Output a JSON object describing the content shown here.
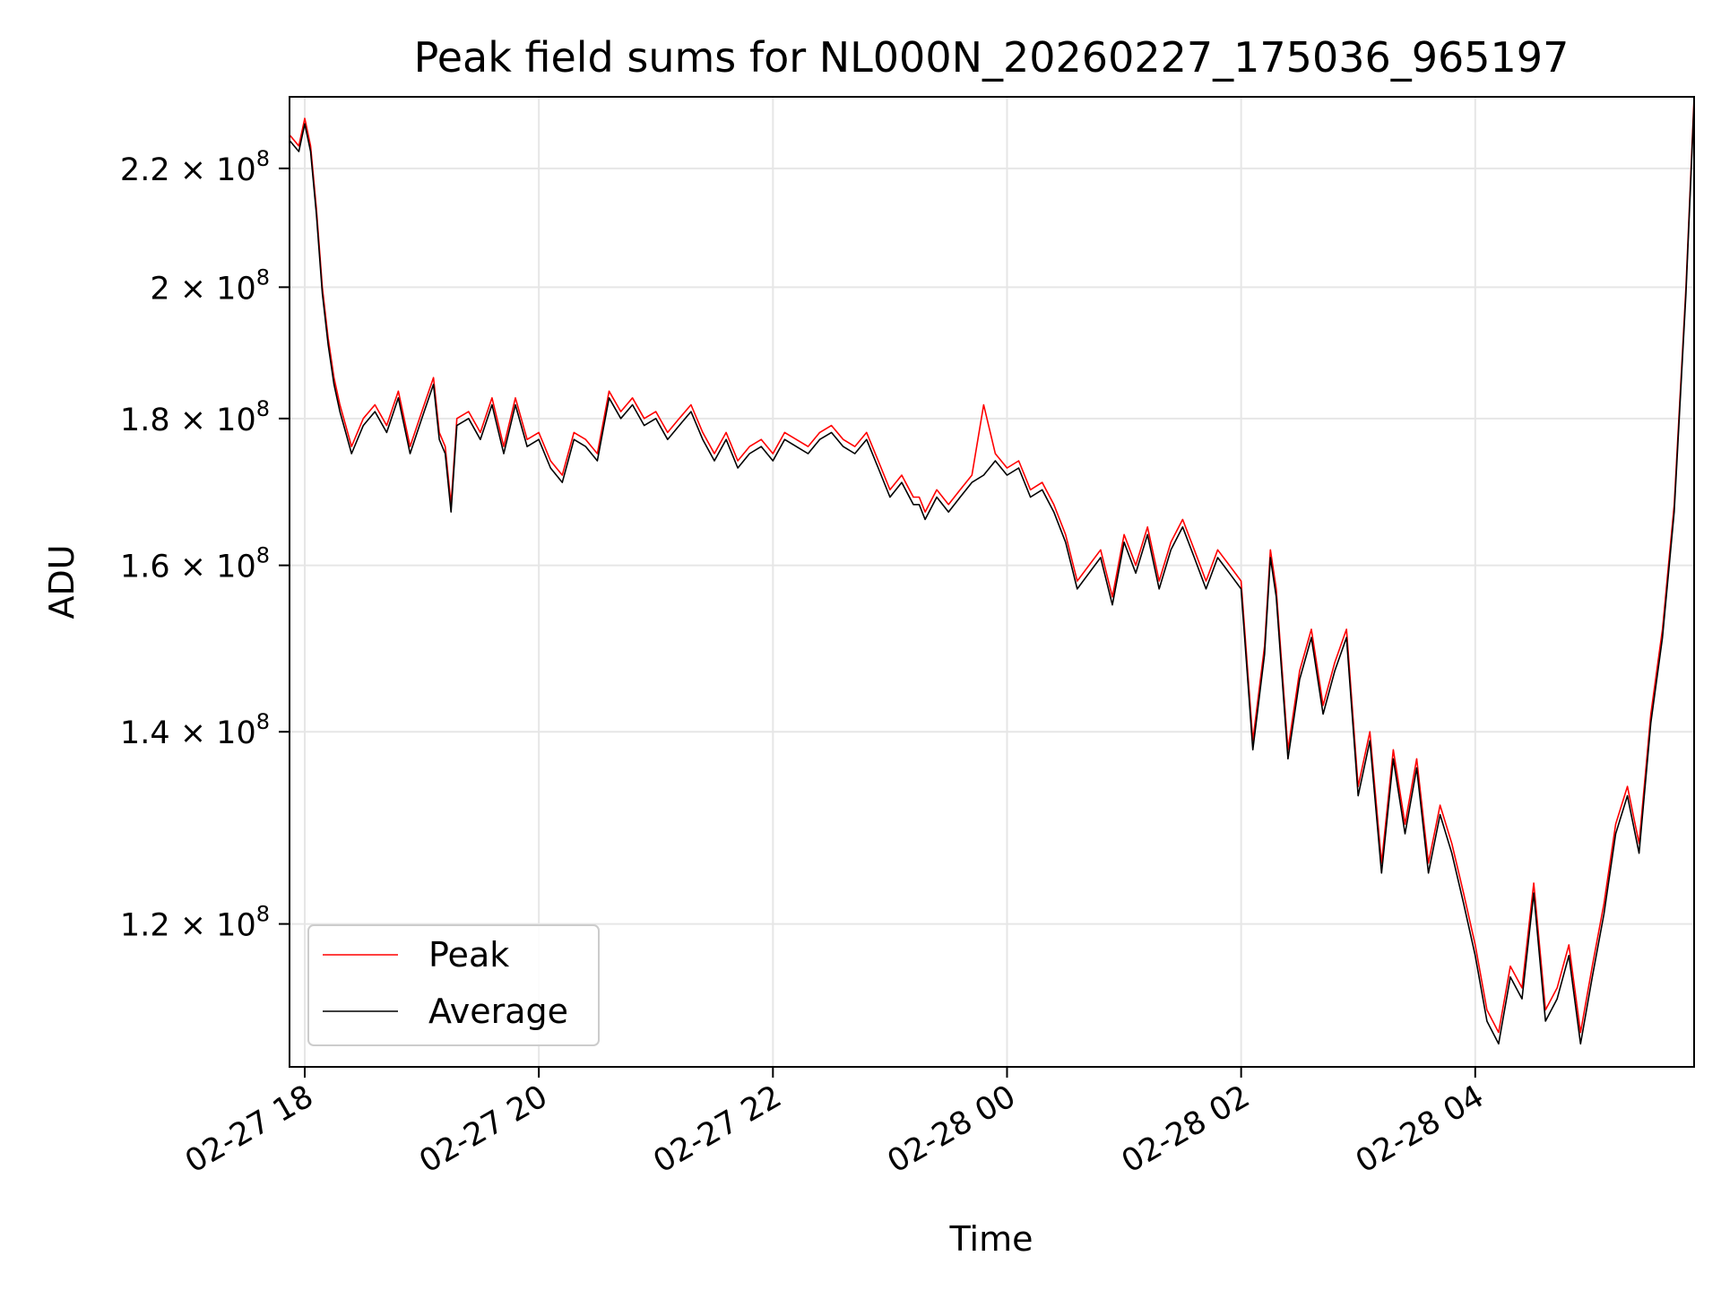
{
  "chart_data": {
    "type": "line",
    "title": "Peak field sums for NL000N_20260227_175036_965197",
    "xlabel": "Time",
    "ylabel": "ADU",
    "grid": true,
    "legend_position": "lower-left",
    "y_scale": "log",
    "x_range_hours": [
      17.87,
      5.87
    ],
    "x_ticks": [
      {
        "label": "02-27 18",
        "hour": 18
      },
      {
        "label": "02-27 20",
        "hour": 20
      },
      {
        "label": "02-27 22",
        "hour": 22
      },
      {
        "label": "02-28 00",
        "hour": 24
      },
      {
        "label": "02-28 02",
        "hour": 26
      },
      {
        "label": "02-28 04",
        "hour": 28
      }
    ],
    "y_ticks": [
      {
        "mantissa": "2.2",
        "value": 220000000
      },
      {
        "mantissa": "2",
        "value": 200000000
      },
      {
        "mantissa": "1.8",
        "value": 180000000
      },
      {
        "mantissa": "1.6",
        "value": 160000000
      },
      {
        "mantissa": "1.4",
        "value": 140000000
      },
      {
        "mantissa": "1.2",
        "value": 120000000
      }
    ],
    "y_tick_base": "× 10",
    "y_tick_exponent": "8",
    "ylim": [
      107000000,
      233000000
    ],
    "x_hours": [
      17.87,
      17.95,
      18.0,
      18.05,
      18.1,
      18.15,
      18.2,
      18.25,
      18.3,
      18.35,
      18.4,
      18.5,
      18.6,
      18.7,
      18.8,
      18.9,
      19.0,
      19.1,
      19.15,
      19.2,
      19.25,
      19.3,
      19.4,
      19.5,
      19.6,
      19.7,
      19.8,
      19.9,
      20.0,
      20.1,
      20.2,
      20.3,
      20.4,
      20.5,
      20.6,
      20.7,
      20.8,
      20.9,
      21.0,
      21.1,
      21.2,
      21.3,
      21.4,
      21.5,
      21.6,
      21.7,
      21.8,
      21.9,
      22.0,
      22.1,
      22.2,
      22.3,
      22.4,
      22.5,
      22.6,
      22.7,
      22.8,
      22.9,
      23.0,
      23.1,
      23.2,
      23.25,
      23.3,
      23.4,
      23.5,
      23.6,
      23.7,
      23.8,
      23.9,
      24.0,
      24.1,
      24.2,
      24.3,
      24.4,
      24.5,
      24.6,
      24.7,
      24.8,
      24.9,
      25.0,
      25.1,
      25.2,
      25.3,
      25.4,
      25.5,
      25.6,
      25.7,
      25.8,
      25.9,
      26.0,
      26.1,
      26.2,
      26.25,
      26.3,
      26.4,
      26.5,
      26.6,
      26.7,
      26.8,
      26.9,
      27.0,
      27.1,
      27.2,
      27.3,
      27.4,
      27.5,
      27.6,
      27.7,
      27.8,
      27.9,
      28.0,
      28.1,
      28.2,
      28.3,
      28.4,
      28.5,
      28.6,
      28.7,
      28.8,
      28.9,
      29.0,
      29.1,
      29.2,
      29.3,
      29.4,
      29.5,
      29.6,
      29.7,
      29.8,
      29.87
    ],
    "series": [
      {
        "name": "Peak",
        "color": "#ff0000",
        "values": [
          226000000,
          224000000,
          229000000,
          224000000,
          213000000,
          200000000,
          192000000,
          186000000,
          182000000,
          179000000,
          176000000,
          180000000,
          182000000,
          179000000,
          184000000,
          176000000,
          181000000,
          186000000,
          178000000,
          176000000,
          168000000,
          180000000,
          181000000,
          178000000,
          183000000,
          176000000,
          183000000,
          177000000,
          178000000,
          174000000,
          172000000,
          178000000,
          177000000,
          175000000,
          184000000,
          181000000,
          183000000,
          180000000,
          181000000,
          178000000,
          180000000,
          182000000,
          178000000,
          175000000,
          178000000,
          174000000,
          176000000,
          177000000,
          175000000,
          178000000,
          177000000,
          176000000,
          178000000,
          179000000,
          177000000,
          176000000,
          178000000,
          174000000,
          170000000,
          172000000,
          169000000,
          169000000,
          167000000,
          170000000,
          168000000,
          170000000,
          172000000,
          182000000,
          175000000,
          173000000,
          174000000,
          170000000,
          171000000,
          168000000,
          164000000,
          158000000,
          160000000,
          162000000,
          156000000,
          164000000,
          160000000,
          165000000,
          158000000,
          163000000,
          166000000,
          162000000,
          158000000,
          162000000,
          160000000,
          158000000,
          139000000,
          150000000,
          162000000,
          157000000,
          138000000,
          147000000,
          152000000,
          143000000,
          148000000,
          152000000,
          134000000,
          140000000,
          126000000,
          138000000,
          130000000,
          137000000,
          126000000,
          132000000,
          128000000,
          123000000,
          118000000,
          112000000,
          110000000,
          116000000,
          114000000,
          124000000,
          112000000,
          114000000,
          118000000,
          110000000,
          116000000,
          122000000,
          130000000,
          134000000,
          128000000,
          142000000,
          152000000,
          168000000,
          200000000,
          233000000
        ]
      },
      {
        "name": "Average",
        "color": "#000000",
        "values": [
          225000000,
          223000000,
          228000000,
          223000000,
          212000000,
          199000000,
          191000000,
          185000000,
          181000000,
          178000000,
          175000000,
          179000000,
          181000000,
          178000000,
          183000000,
          175000000,
          180000000,
          185000000,
          177000000,
          175000000,
          167000000,
          179000000,
          180000000,
          177000000,
          182000000,
          175000000,
          182000000,
          176000000,
          177000000,
          173000000,
          171000000,
          177000000,
          176000000,
          174000000,
          183000000,
          180000000,
          182000000,
          179000000,
          180000000,
          177000000,
          179000000,
          181000000,
          177000000,
          174000000,
          177000000,
          173000000,
          175000000,
          176000000,
          174000000,
          177000000,
          176000000,
          175000000,
          177000000,
          178000000,
          176000000,
          175000000,
          177000000,
          173000000,
          169000000,
          171000000,
          168000000,
          168000000,
          166000000,
          169000000,
          167000000,
          169000000,
          171000000,
          172000000,
          174000000,
          172000000,
          173000000,
          169000000,
          170000000,
          167000000,
          163000000,
          157000000,
          159000000,
          161000000,
          155000000,
          163000000,
          159000000,
          164000000,
          157000000,
          162000000,
          165000000,
          161000000,
          157000000,
          161000000,
          159000000,
          157000000,
          138000000,
          149000000,
          161000000,
          156000000,
          137000000,
          146000000,
          151000000,
          142000000,
          147000000,
          151000000,
          133000000,
          139000000,
          125000000,
          137000000,
          129000000,
          136000000,
          125000000,
          131000000,
          127000000,
          122000000,
          117000000,
          111000000,
          109000000,
          115000000,
          113000000,
          123000000,
          111000000,
          113000000,
          117000000,
          109000000,
          115000000,
          121000000,
          129000000,
          133000000,
          127000000,
          141000000,
          151000000,
          167000000,
          199000000,
          232000000
        ]
      }
    ]
  }
}
